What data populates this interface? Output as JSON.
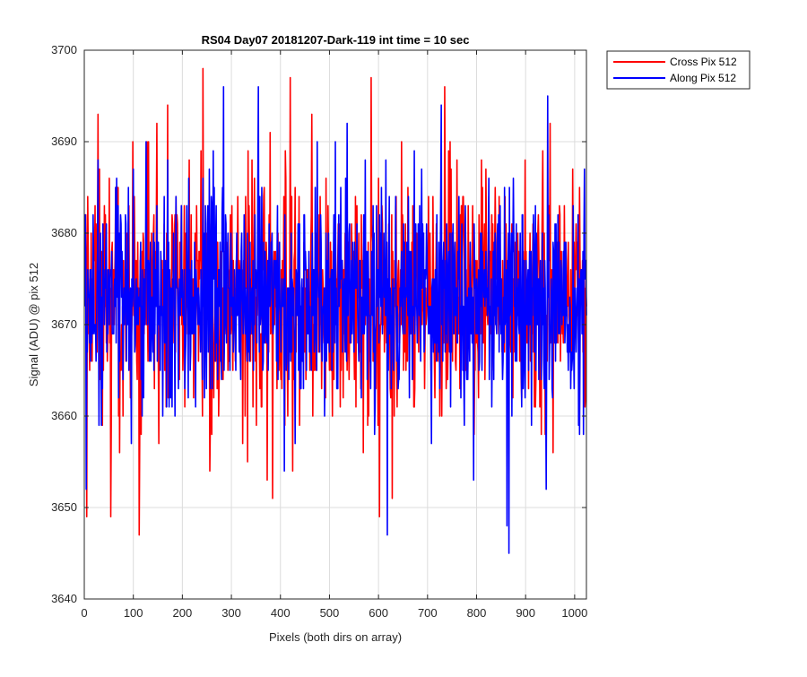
{
  "chart_data": {
    "type": "line",
    "title": "RS04 Day07 20181207-Dark-119 int time = 10 sec",
    "xlabel": "Pixels (both dirs on array)",
    "ylabel": "Signal (ADU) @ pix 512",
    "xlim": [
      0,
      1024
    ],
    "ylim": [
      3640,
      3700
    ],
    "xticks": [
      0,
      100,
      200,
      300,
      400,
      500,
      600,
      700,
      800,
      900,
      1000
    ],
    "yticks": [
      3640,
      3650,
      3660,
      3670,
      3680,
      3690,
      3700
    ],
    "grid": true,
    "legend_position": "outside-top-right",
    "series": [
      {
        "name": "Cross Pix 512",
        "color": "#ff0000",
        "x_start": 1,
        "x_step": 1,
        "count": 1024,
        "mean": 3673,
        "spread": 6.5,
        "extremes": [
          [
            3,
            3682
          ],
          [
            5,
            3649
          ],
          [
            54,
            3649
          ],
          [
            112,
            3647
          ],
          [
            148,
            3692
          ],
          [
            170,
            3694
          ],
          [
            238,
            3689
          ],
          [
            242,
            3698
          ],
          [
            256,
            3654
          ],
          [
            420,
            3697
          ],
          [
            585,
            3697
          ],
          [
            602,
            3649
          ],
          [
            628,
            3651
          ],
          [
            735,
            3696
          ],
          [
            950,
            3692
          ],
          [
            1010,
            3685
          ]
        ]
      },
      {
        "name": "Along Pix 512",
        "color": "#0000ff",
        "x_start": 1,
        "x_step": 1,
        "count": 1024,
        "mean": 3672.5,
        "spread": 6.0,
        "extremes": [
          [
            4,
            3652
          ],
          [
            28,
            3688
          ],
          [
            126,
            3690
          ],
          [
            284,
            3696
          ],
          [
            355,
            3696
          ],
          [
            475,
            3690
          ],
          [
            512,
            3690
          ],
          [
            618,
            3647
          ],
          [
            862,
            3648
          ],
          [
            866,
            3645
          ],
          [
            945,
            3695
          ],
          [
            1018,
            3658
          ]
        ]
      }
    ]
  }
}
